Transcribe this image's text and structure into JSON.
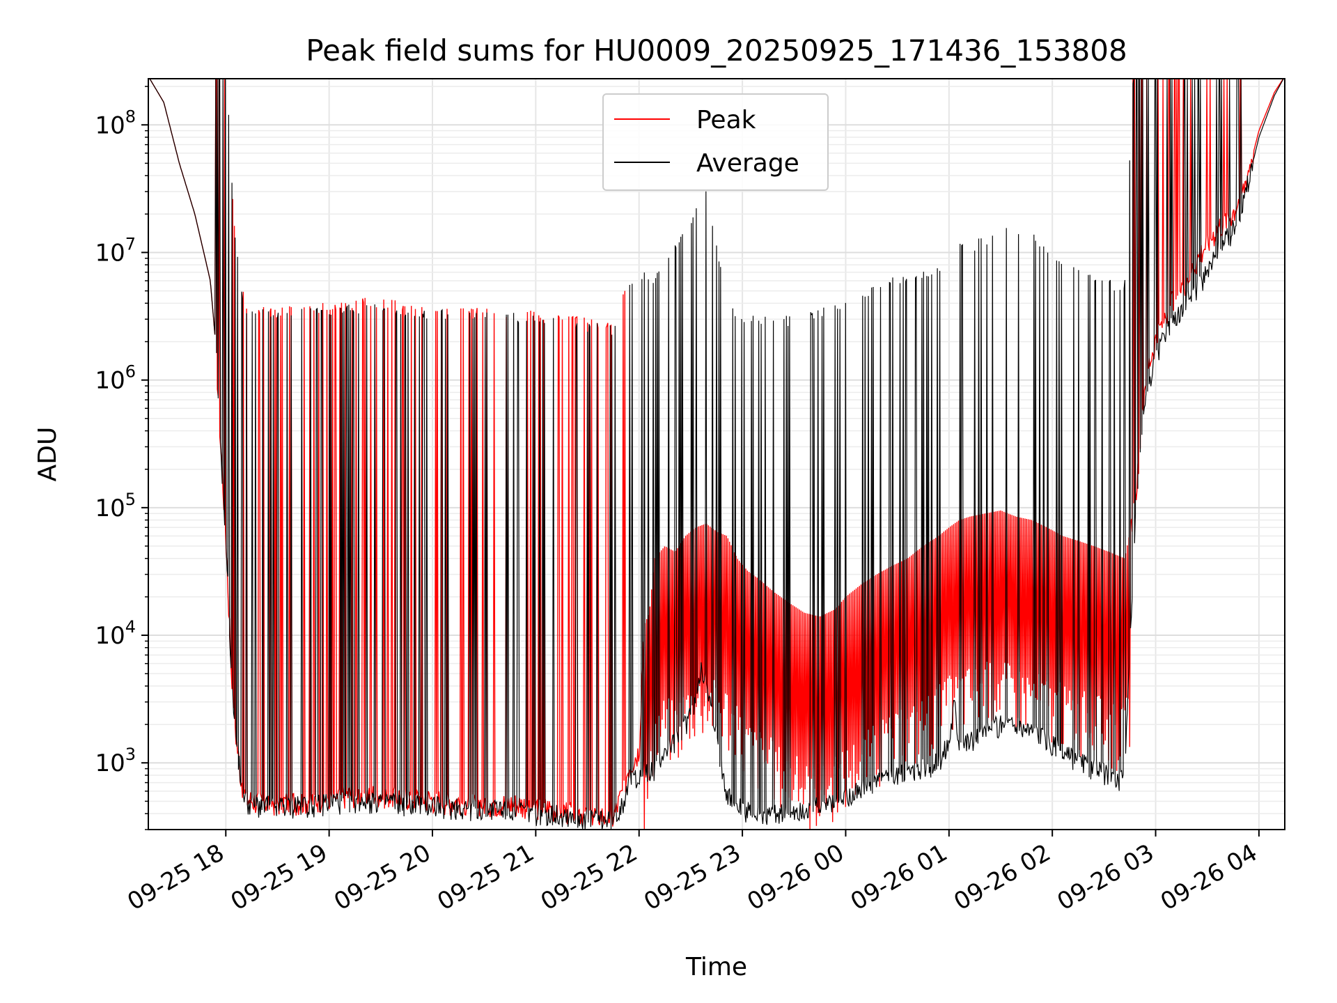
{
  "chart_data": {
    "type": "line",
    "title": "Peak field sums for HU0009_20250925_171436_153808",
    "xlabel": "Time",
    "ylabel": "ADU",
    "yscale": "log",
    "ylim": [
      300,
      230000000
    ],
    "xlim_hours": [
      17.25,
      28.25
    ],
    "grid": "major and minor",
    "legend_position": "top-center",
    "x_ticks": [
      {
        "label": "09-25 18",
        "hour": 18
      },
      {
        "label": "09-25 19",
        "hour": 19
      },
      {
        "label": "09-25 20",
        "hour": 20
      },
      {
        "label": "09-25 21",
        "hour": 21
      },
      {
        "label": "09-25 22",
        "hour": 22
      },
      {
        "label": "09-25 23",
        "hour": 23
      },
      {
        "label": "09-26 00",
        "hour": 24
      },
      {
        "label": "09-26 01",
        "hour": 25
      },
      {
        "label": "09-26 02",
        "hour": 26
      },
      {
        "label": "09-26 03",
        "hour": 27
      },
      {
        "label": "09-26 04",
        "hour": 28
      }
    ],
    "y_ticks": [
      {
        "base": "10",
        "exp": "3",
        "value": 1000
      },
      {
        "base": "10",
        "exp": "4",
        "value": 10000
      },
      {
        "base": "10",
        "exp": "5",
        "value": 100000
      },
      {
        "base": "10",
        "exp": "6",
        "value": 1000000
      },
      {
        "base": "10",
        "exp": "7",
        "value": 10000000
      },
      {
        "base": "10",
        "exp": "8",
        "value": 100000000
      }
    ],
    "series": [
      {
        "name": "Peak",
        "color": "#ff0000",
        "points": [
          [
            17.25,
            240000000
          ],
          [
            17.4,
            150000000
          ],
          [
            17.55,
            50000000
          ],
          [
            17.7,
            20000000
          ],
          [
            17.8,
            9000000
          ],
          [
            17.85,
            6000000
          ],
          [
            17.9,
            2000000
          ],
          [
            17.95,
            300000
          ],
          [
            18.0,
            60000
          ],
          [
            18.05,
            6000
          ],
          [
            18.1,
            1500
          ],
          [
            18.15,
            700
          ],
          [
            18.2,
            500
          ],
          [
            18.3,
            480
          ],
          [
            18.5,
            470
          ],
          [
            18.8,
            490
          ],
          [
            19.0,
            520
          ],
          [
            19.3,
            560
          ],
          [
            19.6,
            540
          ],
          [
            19.9,
            510
          ],
          [
            20.2,
            480
          ],
          [
            20.5,
            470
          ],
          [
            20.8,
            460
          ],
          [
            21.0,
            440
          ],
          [
            21.2,
            420
          ],
          [
            21.4,
            400
          ],
          [
            21.6,
            380
          ],
          [
            21.75,
            360
          ],
          [
            21.85,
            600
          ],
          [
            21.9,
            900
          ],
          [
            22.0,
            1200
          ],
          [
            22.05,
            12000
          ],
          [
            22.1,
            15000
          ],
          [
            22.15,
            40000
          ],
          [
            22.25,
            50000
          ],
          [
            22.35,
            45000
          ],
          [
            22.45,
            60000
          ],
          [
            22.55,
            70000
          ],
          [
            22.65,
            75000
          ],
          [
            22.75,
            65000
          ],
          [
            22.85,
            60000
          ],
          [
            22.95,
            40000
          ],
          [
            23.05,
            32000
          ],
          [
            23.15,
            28000
          ],
          [
            23.3,
            22000
          ],
          [
            23.45,
            18000
          ],
          [
            23.6,
            15000
          ],
          [
            23.75,
            14000
          ],
          [
            23.9,
            16000
          ],
          [
            24.0,
            20000
          ],
          [
            24.15,
            25000
          ],
          [
            24.3,
            30000
          ],
          [
            24.45,
            35000
          ],
          [
            24.6,
            40000
          ],
          [
            24.75,
            50000
          ],
          [
            24.9,
            60000
          ],
          [
            25.0,
            70000
          ],
          [
            25.1,
            80000
          ],
          [
            25.2,
            85000
          ],
          [
            25.35,
            90000
          ],
          [
            25.5,
            95000
          ],
          [
            25.65,
            85000
          ],
          [
            25.8,
            80000
          ],
          [
            25.95,
            70000
          ],
          [
            26.1,
            60000
          ],
          [
            26.25,
            55000
          ],
          [
            26.4,
            50000
          ],
          [
            26.55,
            45000
          ],
          [
            26.7,
            40000
          ],
          [
            26.8,
            100000
          ],
          [
            26.9,
            1000000
          ],
          [
            27.0,
            2000000
          ],
          [
            27.15,
            4000000
          ],
          [
            27.3,
            6000000
          ],
          [
            27.45,
            10000000
          ],
          [
            27.6,
            15000000
          ],
          [
            27.75,
            20000000
          ],
          [
            27.85,
            30000000
          ],
          [
            28.0,
            90000000
          ],
          [
            28.15,
            180000000
          ],
          [
            28.25,
            240000000
          ]
        ]
      },
      {
        "name": "Average",
        "color": "#000000",
        "points": [
          [
            17.25,
            240000000
          ],
          [
            17.4,
            150000000
          ],
          [
            17.55,
            50000000
          ],
          [
            17.7,
            20000000
          ],
          [
            17.8,
            9000000
          ],
          [
            17.85,
            6000000
          ],
          [
            17.9,
            2000000
          ],
          [
            17.95,
            300000
          ],
          [
            18.0,
            60000
          ],
          [
            18.05,
            6000
          ],
          [
            18.1,
            1500
          ],
          [
            18.15,
            700
          ],
          [
            18.2,
            480
          ],
          [
            18.3,
            450
          ],
          [
            18.5,
            440
          ],
          [
            18.8,
            460
          ],
          [
            19.0,
            480
          ],
          [
            19.3,
            500
          ],
          [
            19.6,
            480
          ],
          [
            19.9,
            460
          ],
          [
            20.2,
            440
          ],
          [
            20.5,
            430
          ],
          [
            20.8,
            420
          ],
          [
            21.0,
            400
          ],
          [
            21.2,
            390
          ],
          [
            21.4,
            370
          ],
          [
            21.6,
            350
          ],
          [
            21.75,
            340
          ],
          [
            21.85,
            500
          ],
          [
            21.9,
            700
          ],
          [
            22.0,
            800
          ],
          [
            22.05,
            900
          ],
          [
            22.1,
            800
          ],
          [
            22.15,
            900
          ],
          [
            22.25,
            1200
          ],
          [
            22.35,
            1500
          ],
          [
            22.45,
            2000
          ],
          [
            22.55,
            3000
          ],
          [
            22.6,
            6000
          ],
          [
            22.65,
            4000
          ],
          [
            22.75,
            1500
          ],
          [
            22.85,
            600
          ],
          [
            22.95,
            450
          ],
          [
            23.05,
            420
          ],
          [
            23.15,
            400
          ],
          [
            23.3,
            400
          ],
          [
            23.45,
            400
          ],
          [
            23.6,
            420
          ],
          [
            23.75,
            450
          ],
          [
            23.9,
            500
          ],
          [
            24.0,
            550
          ],
          [
            24.15,
            600
          ],
          [
            24.3,
            700
          ],
          [
            24.45,
            800
          ],
          [
            24.6,
            850
          ],
          [
            24.75,
            900
          ],
          [
            24.9,
            1000
          ],
          [
            25.0,
            1500
          ],
          [
            25.05,
            3000
          ],
          [
            25.1,
            1500
          ],
          [
            25.2,
            1500
          ],
          [
            25.35,
            1700
          ],
          [
            25.5,
            2000
          ],
          [
            25.65,
            2000
          ],
          [
            25.8,
            1800
          ],
          [
            25.95,
            1500
          ],
          [
            26.1,
            1200
          ],
          [
            26.25,
            1000
          ],
          [
            26.4,
            900
          ],
          [
            26.55,
            800
          ],
          [
            26.7,
            700
          ],
          [
            26.8,
            70000
          ],
          [
            26.9,
            700000
          ],
          [
            27.0,
            1500000
          ],
          [
            27.15,
            3000000
          ],
          [
            27.3,
            4000000
          ],
          [
            27.45,
            6000000
          ],
          [
            27.6,
            10000000
          ],
          [
            27.75,
            15000000
          ],
          [
            27.85,
            25000000
          ],
          [
            28.0,
            80000000
          ],
          [
            28.15,
            170000000
          ],
          [
            28.25,
            240000000
          ]
        ]
      }
    ],
    "spike_notes": "Dense oscillating spikes occur throughout; both series show large intermittent spikes reaching 1e6–3e7 ADU."
  }
}
